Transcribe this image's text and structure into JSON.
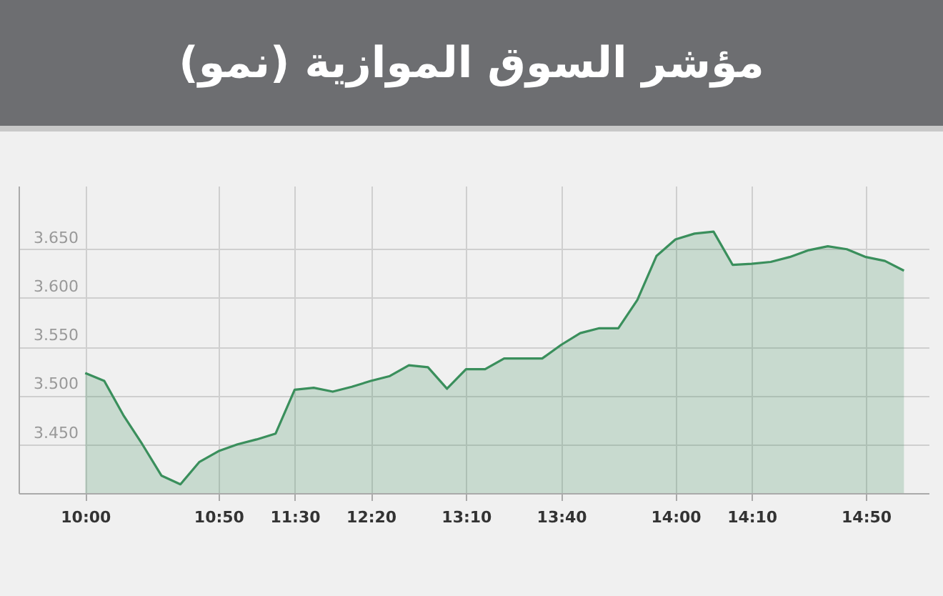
{
  "chart_data": {
    "type": "area",
    "title": "مؤشر السوق الموازية (نمو)",
    "categories": [
      "10:00",
      null,
      null,
      null,
      null,
      null,
      null,
      "10:50",
      null,
      null,
      null,
      "11:30",
      null,
      null,
      null,
      "12:20",
      null,
      null,
      null,
      null,
      "13:10",
      null,
      null,
      null,
      null,
      "13:40",
      null,
      null,
      null,
      null,
      null,
      "14:00",
      null,
      null,
      null,
      "14:10",
      null,
      null,
      null,
      null,
      null,
      "14:50",
      null,
      null
    ],
    "series": [
      {
        "color": "#3a8f5c",
        "values": [
          3523,
          3515,
          3480,
          3450,
          3418,
          3409,
          3432,
          3443,
          3450,
          3455,
          3461,
          3506,
          3508,
          3504,
          3509,
          3515,
          3520,
          3531,
          3529,
          3507,
          3527,
          3527,
          3538,
          3538,
          3538,
          3552,
          3564,
          3569,
          3569,
          3598,
          3643,
          3660,
          3666,
          3668,
          3634,
          3635,
          3637,
          3642,
          3649,
          3653,
          3650,
          3642,
          3638,
          3628
        ]
      }
    ],
    "ylim": [
      3400,
      3715
    ],
    "yticks": [
      {
        "value": 3450,
        "label": "3.450"
      },
      {
        "value": 3500,
        "label": "3.500"
      },
      {
        "value": 3550,
        "label": "3.550"
      },
      {
        "value": 3600,
        "label": "3.600"
      },
      {
        "value": 3650,
        "label": "3.650"
      }
    ],
    "grid": true
  }
}
